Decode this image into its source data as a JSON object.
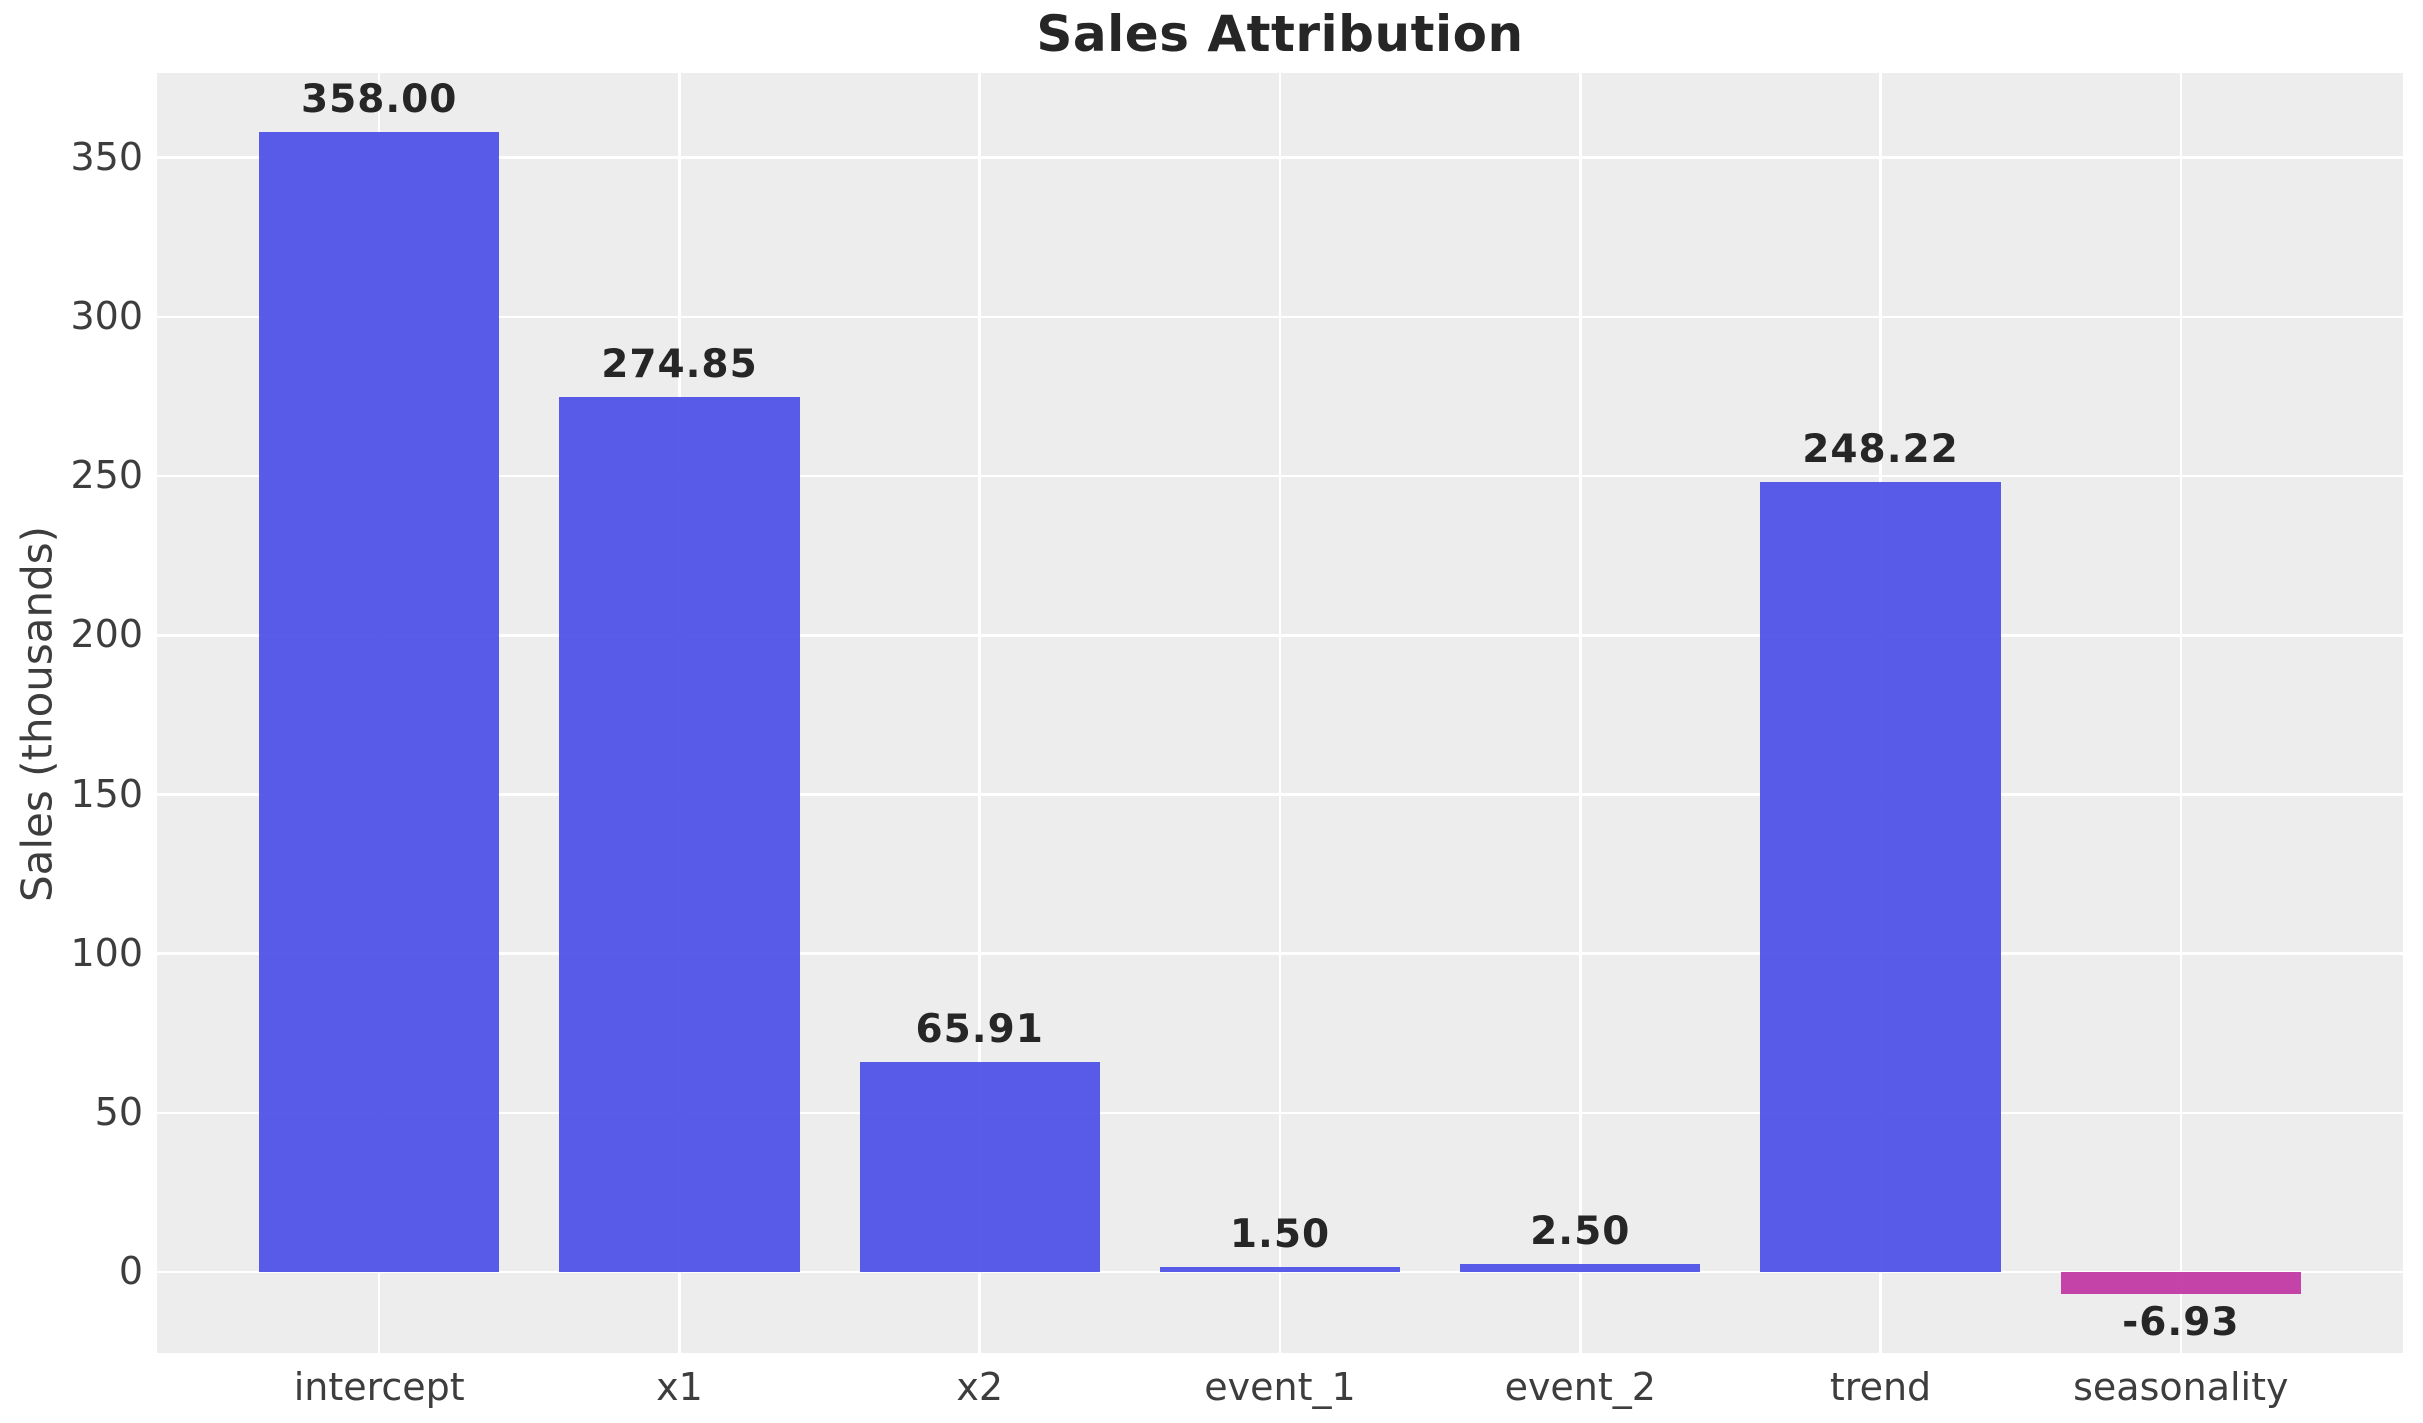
{
  "chart_data": {
    "type": "bar",
    "title": "Sales Attribution",
    "xlabel": "",
    "ylabel": "Sales (thousands)",
    "categories": [
      "intercept",
      "x1",
      "x2",
      "event_1",
      "event_2",
      "trend",
      "seasonality"
    ],
    "values": [
      358.0,
      274.85,
      65.91,
      1.5,
      2.5,
      248.22,
      -6.93
    ],
    "value_labels": [
      "358.00",
      "274.85",
      "65.91",
      "1.50",
      "2.50",
      "248.22",
      "-6.93"
    ],
    "yticks": [
      0,
      50,
      100,
      150,
      200,
      250,
      300,
      350
    ],
    "ylim": [
      -25.4,
      376.6
    ],
    "xlim": [
      -0.74,
      6.74
    ],
    "bar_width": 0.8,
    "grid": true,
    "legend_position": "none",
    "colors": {
      "positive_bar": "#4f53e8",
      "negative_bar": "#c23aa5",
      "plot_background": "#ededed",
      "gridline": "#ffffff",
      "figure_background": "#ffffff",
      "title_text": "#262626",
      "value_label_text": "#262626",
      "tick_text": "#3d3d3d"
    }
  }
}
